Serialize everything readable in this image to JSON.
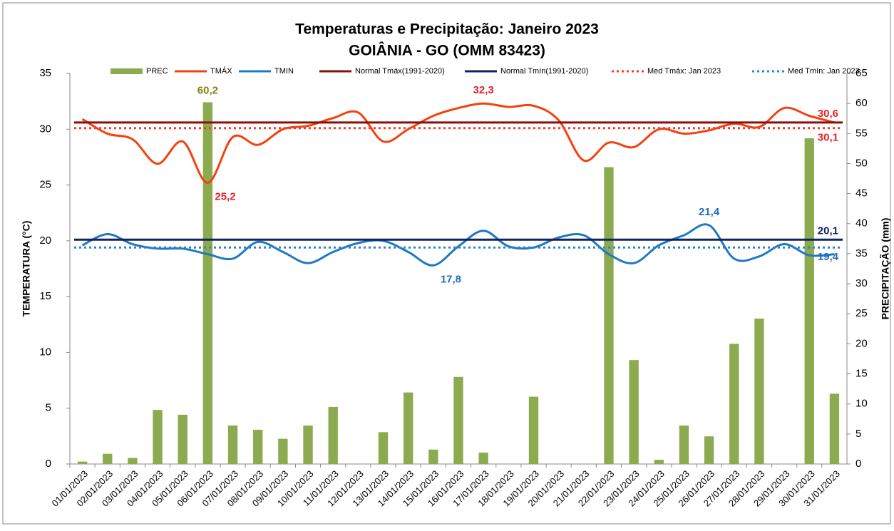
{
  "chart_data": {
    "type": "bar_line",
    "title": "Temperaturas e Precipitação: Janeiro 2023",
    "subtitle": "GOIÂNIA - GO (OMM 83423)",
    "ylabel": "TEMPERATURA  (°C)",
    "y2label": "PRECIPITAÇÃO  (mm)",
    "categories": [
      "01/01/2023",
      "02/01/2023",
      "03/01/2023",
      "04/01/2023",
      "05/01/2023",
      "06/01/2023",
      "07/01/2023",
      "08/01/2023",
      "09/01/2023",
      "10/01/2023",
      "11/01/2023",
      "12/01/2023",
      "13/01/2023",
      "14/01/2023",
      "15/01/2023",
      "16/01/2023",
      "17/01/2023",
      "18/01/2023",
      "19/01/2023",
      "20/01/2023",
      "21/01/2023",
      "22/01/2023",
      "23/01/2023",
      "24/01/2023",
      "25/01/2023",
      "26/01/2023",
      "27/01/2023",
      "28/01/2023",
      "29/01/2023",
      "30/01/2023",
      "31/01/2023"
    ],
    "ylim": [
      0,
      35
    ],
    "yticks": [
      0,
      5,
      10,
      15,
      20,
      25,
      30,
      35
    ],
    "y2lim": [
      0,
      65
    ],
    "y2ticks": [
      0,
      5,
      10,
      15,
      20,
      25,
      30,
      35,
      40,
      45,
      50,
      55,
      60,
      65
    ],
    "grid": false,
    "series": [
      {
        "name": "PREC",
        "type": "bar",
        "axis": "y2",
        "color": "#8caa50",
        "label_color": "#7f7f10",
        "values": [
          0.4,
          1.7,
          1.0,
          9.0,
          8.2,
          60.2,
          6.4,
          5.7,
          4.2,
          6.4,
          9.5,
          0,
          5.3,
          11.9,
          2.4,
          14.5,
          1.9,
          0,
          11.2,
          0,
          0,
          49.4,
          17.3,
          0.7,
          6.4,
          4.6,
          20.0,
          24.2,
          0,
          54.2,
          11.7
        ],
        "value_labels": [
          null,
          null,
          null,
          null,
          null,
          "60,2",
          null,
          null,
          null,
          null,
          null,
          null,
          null,
          null,
          null,
          null,
          null,
          null,
          null,
          null,
          null,
          null,
          null,
          null,
          null,
          null,
          null,
          null,
          null,
          null,
          null
        ]
      },
      {
        "name": "TMÁX",
        "type": "line",
        "color": "#f5400f",
        "label_color": "#e8202a",
        "values": [
          30.9,
          29.6,
          29.1,
          26.9,
          28.9,
          25.2,
          29.3,
          28.6,
          30.0,
          30.3,
          31.0,
          31.5,
          28.9,
          30.0,
          31.2,
          31.9,
          32.3,
          32.0,
          32.1,
          30.8,
          27.2,
          28.8,
          28.4,
          30.0,
          29.6,
          29.9,
          30.5,
          30.2,
          31.9,
          31.2,
          30.6
        ],
        "value_labels": [
          null,
          null,
          null,
          null,
          null,
          "25,2",
          null,
          null,
          null,
          null,
          null,
          null,
          null,
          null,
          null,
          null,
          "32,3",
          null,
          null,
          null,
          null,
          null,
          null,
          null,
          null,
          null,
          null,
          null,
          null,
          null,
          null
        ]
      },
      {
        "name": "TMIN",
        "type": "line",
        "color": "#1f78c4",
        "label_color": "#1f6fbf",
        "values": [
          19.6,
          20.6,
          19.7,
          19.3,
          19.3,
          18.8,
          18.4,
          19.9,
          19.0,
          18.0,
          19.0,
          19.8,
          20.0,
          19.0,
          17.8,
          19.5,
          20.9,
          19.5,
          19.4,
          20.3,
          20.5,
          18.8,
          18.0,
          19.6,
          20.5,
          21.4,
          18.4,
          18.6,
          19.7,
          18.7,
          18.8
        ],
        "value_labels": [
          null,
          null,
          null,
          null,
          null,
          null,
          null,
          null,
          null,
          null,
          null,
          null,
          null,
          null,
          "17,8",
          null,
          null,
          null,
          null,
          null,
          null,
          null,
          null,
          null,
          null,
          "21,4",
          null,
          null,
          null,
          null,
          null
        ]
      },
      {
        "name": "Normal Tmáx(1991-2020)",
        "type": "reference",
        "color": "#8b0d0d",
        "label_color": "#e8202a",
        "value": 30.6,
        "value_label": "30,6",
        "dashed": false,
        "label_side": "above"
      },
      {
        "name": "Normal Tmín(1991-2020)",
        "type": "reference",
        "color": "#10245e",
        "label_color": "#10245e",
        "value": 20.1,
        "value_label": "20,1",
        "dashed": false,
        "label_side": "above"
      },
      {
        "name": "Med Tmáx: Jan 2023",
        "type": "reference",
        "color": "#ff3b1f",
        "label_color": "#e8202a",
        "value": 30.1,
        "value_label": "30,1",
        "dashed": true,
        "label_side": "below"
      },
      {
        "name": "Med Tmín: Jan 2023",
        "type": "reference",
        "color": "#2e86c8",
        "label_color": "#1f6fbf",
        "value": 19.4,
        "value_label": "19,4",
        "dashed": true,
        "label_side": "below"
      }
    ]
  }
}
